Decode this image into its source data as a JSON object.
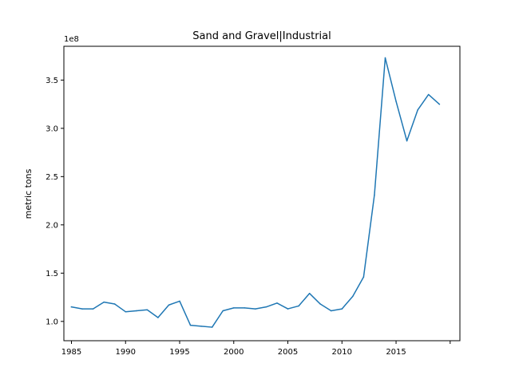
{
  "chart_data": {
    "type": "line",
    "title": "Sand and Gravel|Industrial",
    "xlabel": "",
    "ylabel": "metric tons",
    "y_offset_label": "1e8",
    "x": [
      1985,
      1986,
      1987,
      1988,
      1989,
      1990,
      1991,
      1992,
      1993,
      1994,
      1995,
      1996,
      1997,
      1998,
      1999,
      2000,
      2001,
      2002,
      2003,
      2004,
      2005,
      2006,
      2007,
      2008,
      2009,
      2010,
      2011,
      2012,
      2013,
      2014,
      2015,
      2016,
      2017,
      2018,
      2019
    ],
    "series": [
      {
        "color": "#1f77b4",
        "values": [
          115000000,
          113000000,
          113000000,
          120000000,
          118000000,
          110000000,
          111000000,
          112000000,
          104000000,
          117000000,
          121000000,
          96000000,
          95000000,
          94000000,
          111000000,
          114000000,
          114000000,
          113000000,
          115000000,
          119000000,
          113000000,
          116000000,
          129000000,
          118000000,
          111000000,
          113000000,
          126000000,
          146000000,
          231000000,
          373000000,
          328000000,
          287000000,
          319000000,
          335000000,
          325000000
        ]
      }
    ],
    "xlim": [
      1984.3,
      2020.9
    ],
    "ylim": [
      80000000,
      385000000
    ],
    "x_ticks": [
      1985,
      1990,
      1995,
      2000,
      2005,
      2010,
      2015,
      2020
    ],
    "x_tick_labels": [
      "1985",
      "1990",
      "1995",
      "2000",
      "2005",
      "2010",
      "2015",
      ""
    ],
    "y_ticks": [
      100000000,
      150000000,
      200000000,
      250000000,
      300000000,
      350000000
    ],
    "y_tick_labels": [
      "1.0",
      "1.5",
      "2.0",
      "2.5",
      "3.0",
      "3.5"
    ],
    "grid": false,
    "legend": "none"
  }
}
